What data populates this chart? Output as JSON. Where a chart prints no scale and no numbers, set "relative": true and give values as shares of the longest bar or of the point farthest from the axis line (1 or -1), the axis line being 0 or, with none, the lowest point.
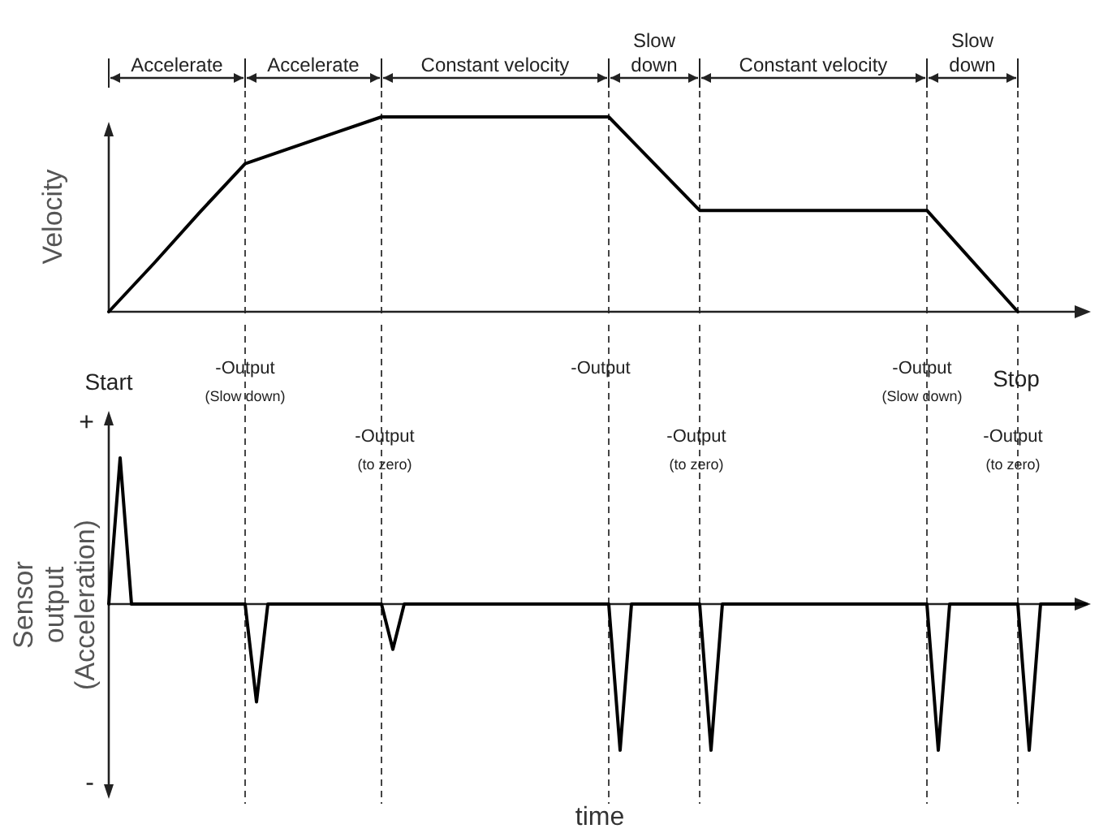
{
  "chart_data": [
    {
      "type": "line",
      "ylabel": "Velocity",
      "relative": true,
      "grid": "x",
      "categories": [
        null,
        null,
        null,
        null,
        null,
        null,
        null,
        null,
        null,
        null,
        null,
        null,
        null,
        null,
        null,
        null,
        null,
        null,
        null,
        null,
        null
      ],
      "series": [
        {
          "color": "#000000",
          "values": [
            0,
            0.25,
            0.51,
            0.76,
            0.84,
            0.92,
            1,
            1,
            1,
            1,
            1,
            1,
            0.76,
            0.52,
            0.52,
            0.52,
            0.52,
            0.52,
            0.52,
            0.26,
            0
          ]
        }
      ],
      "annotations": [
        "Accelerate",
        "Accelerate",
        "Constant velocity",
        "Slow down",
        "Constant velocity",
        "Slow down"
      ]
    },
    {
      "type": "line",
      "ylabel": "Sensor output (Acceleration)",
      "xlabel": "time",
      "relative": true,
      "grid": "x",
      "categories": [
        null,
        null,
        null,
        null,
        null,
        null,
        null,
        null,
        null,
        null,
        null,
        null,
        null,
        null,
        null,
        null,
        null,
        null,
        null,
        null,
        null,
        null,
        null,
        null,
        null,
        null,
        null,
        null,
        null,
        null,
        null,
        null,
        null,
        null,
        null,
        null,
        null,
        null,
        null,
        null,
        null,
        null,
        null,
        null,
        null,
        null,
        null,
        null,
        null,
        null,
        null,
        null,
        null,
        null,
        null,
        null,
        null,
        null,
        null,
        null,
        null,
        null,
        null,
        null,
        null,
        null,
        null,
        null,
        null,
        null,
        null,
        null,
        null,
        null,
        null,
        null,
        null,
        null,
        null,
        null,
        null,
        null,
        null,
        null,
        null,
        null,
        null
      ],
      "series": [
        {
          "color": "#000000",
          "values": [
            0,
            1,
            0,
            0,
            0,
            0,
            0,
            0,
            0,
            0,
            0,
            0,
            0,
            -0.67,
            0,
            0,
            0,
            0,
            0,
            0,
            0,
            0,
            0,
            0,
            0,
            -0.31,
            0,
            0,
            0,
            0,
            0,
            0,
            0,
            0,
            0,
            0,
            0,
            0,
            0,
            0,
            0,
            0,
            0,
            0,
            0,
            -1,
            0,
            0,
            0,
            0,
            0,
            0,
            0,
            -1,
            0,
            0,
            0,
            0,
            0,
            0,
            0,
            0,
            0,
            0,
            0,
            0,
            0,
            0,
            0,
            0,
            0,
            0,
            0,
            -1,
            0,
            0,
            0,
            0,
            0,
            0,
            0,
            -1,
            0,
            0,
            0,
            0,
            0
          ]
        }
      ],
      "annotations": [
        "Start",
        "+",
        "-",
        "-Output",
        "(Slow down)",
        "-Output",
        "(to zero)",
        "-Output",
        "-Output",
        "(to zero)",
        "-Output",
        "(Slow down)",
        "Stop",
        "-Output",
        "(to zero)"
      ]
    }
  ]
}
